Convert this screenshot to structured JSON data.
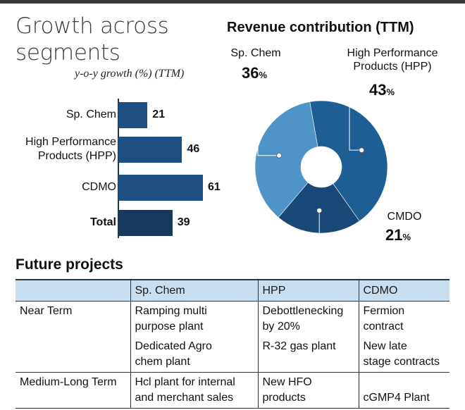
{
  "header": {
    "title_line1": "Growth across",
    "title_line2": "segments",
    "subtitle": "y-o-y growth (%) (TTM)",
    "donut_title": "Revenue contribution (TTM)"
  },
  "chart_data": [
    {
      "type": "bar",
      "orientation": "horizontal",
      "subtitle": "y-o-y growth (%) (TTM)",
      "categories": [
        "Sp. Chem",
        "High Performance Products (HPP)",
        "CDMO",
        "Total"
      ],
      "category_lines": [
        [
          "Sp. Chem"
        ],
        [
          "High Performance",
          "Products (HPP)"
        ],
        [
          "CDMO"
        ],
        [
          "Total"
        ]
      ],
      "values": [
        21,
        46,
        61,
        39
      ],
      "value_labels": [
        "21",
        "46",
        "61",
        "39"
      ],
      "xlim": [
        0,
        61
      ],
      "colors": [
        "#1d4f82",
        "#1d4f82",
        "#1d4f82",
        "#16395c"
      ],
      "grid": false,
      "legend": "none"
    },
    {
      "type": "pie",
      "donut": true,
      "title": "Revenue contribution (TTM)",
      "slices": [
        {
          "label": "High Performance Products (HPP)",
          "label_lines": [
            "High Performance",
            "Products (HPP)"
          ],
          "value": 43,
          "pct_num": "43",
          "color": "#1d5e94"
        },
        {
          "label": "CMDO",
          "label_lines": [
            "CMDO"
          ],
          "value": 21,
          "pct_num": "21",
          "color": "#174a78"
        },
        {
          "label": "Sp. Chem",
          "label_lines": [
            "Sp. Chem"
          ],
          "value": 36,
          "pct_num": "36",
          "color": "#4f94c9"
        }
      ],
      "pct_unit": "%",
      "legend": "none"
    }
  ],
  "projects": {
    "title": "Future projects",
    "columns": [
      "",
      "Sp. Chem",
      "HPP",
      "CDMO"
    ],
    "rows": [
      {
        "term": "Near Term",
        "cells": [
          [
            "Ramping multi",
            "purpose plant"
          ],
          [
            "Debottlenecking",
            "by 20%"
          ],
          [
            "Fermion",
            "contract"
          ]
        ]
      },
      {
        "term": "",
        "cells": [
          [
            "Dedicated Agro",
            "chem plant"
          ],
          [
            "R-32 gas plant"
          ],
          [
            "New late",
            "stage contracts"
          ]
        ]
      },
      {
        "term": "Medium-Long Term",
        "cells": [
          [
            "Hcl plant for internal",
            "and merchant sales"
          ],
          [
            "New HFO",
            "products"
          ],
          [
            "",
            "cGMP4 Plant"
          ]
        ]
      }
    ]
  }
}
